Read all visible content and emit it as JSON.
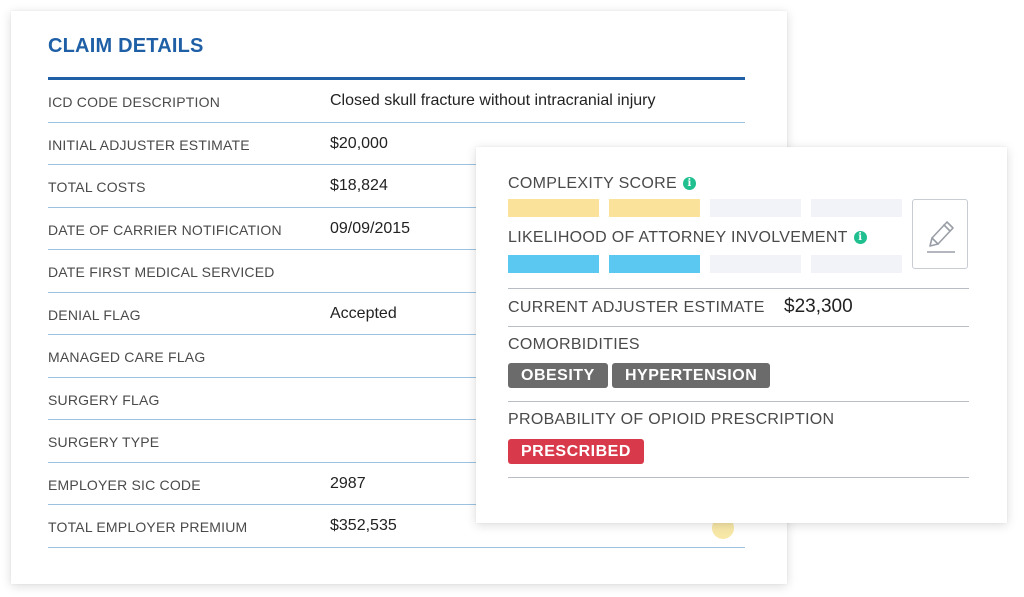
{
  "claim": {
    "title": "CLAIM DETAILS",
    "rows": [
      {
        "label": "ICD CODE DESCRIPTION",
        "value": "Closed skull fracture without intracranial injury"
      },
      {
        "label": "INITIAL ADJUSTER ESTIMATE",
        "value": "$20,000"
      },
      {
        "label": "TOTAL COSTS",
        "value": "$18,824"
      },
      {
        "label": "DATE OF CARRIER NOTIFICATION",
        "value": "09/09/2015"
      },
      {
        "label": "DATE FIRST MEDICAL SERVICED",
        "value": ""
      },
      {
        "label": "DENIAL FLAG",
        "value": "Accepted"
      },
      {
        "label": "MANAGED CARE FLAG",
        "value": ""
      },
      {
        "label": "SURGERY FLAG",
        "value": ""
      },
      {
        "label": "SURGERY TYPE",
        "value": ""
      },
      {
        "label": "EMPLOYER SIC CODE",
        "value": "2987"
      },
      {
        "label": "TOTAL EMPLOYER PREMIUM",
        "value": "$352,535"
      }
    ]
  },
  "risk": {
    "complexity": {
      "label": "COMPLEXITY SCORE",
      "level": 2,
      "max": 4,
      "color": "#fbe29a",
      "icon": "info-icon"
    },
    "attorney": {
      "label": "LIKELIHOOD OF ATTORNEY INVOLVEMENT",
      "level": 2,
      "max": 4,
      "color": "#5bc8f2",
      "icon": "info-icon"
    },
    "edit_icon": "pencil-icon",
    "estimate": {
      "label": "CURRENT ADJUSTER ESTIMATE",
      "value": "$23,300"
    },
    "comorbidities": {
      "label": "COMORBIDITIES",
      "tags": [
        "OBESITY",
        "HYPERTENSION"
      ],
      "color": "#6b6b6b"
    },
    "opioid": {
      "label": "PROBABILITY OF OPIOID PRESCRIPTION",
      "status": "PRESCRIBED",
      "color": "#d93a4b"
    }
  },
  "colors": {
    "accent": "#1f5fa6",
    "row_divider": "#9cc2e0",
    "bar_empty": "#f1f3f9"
  }
}
